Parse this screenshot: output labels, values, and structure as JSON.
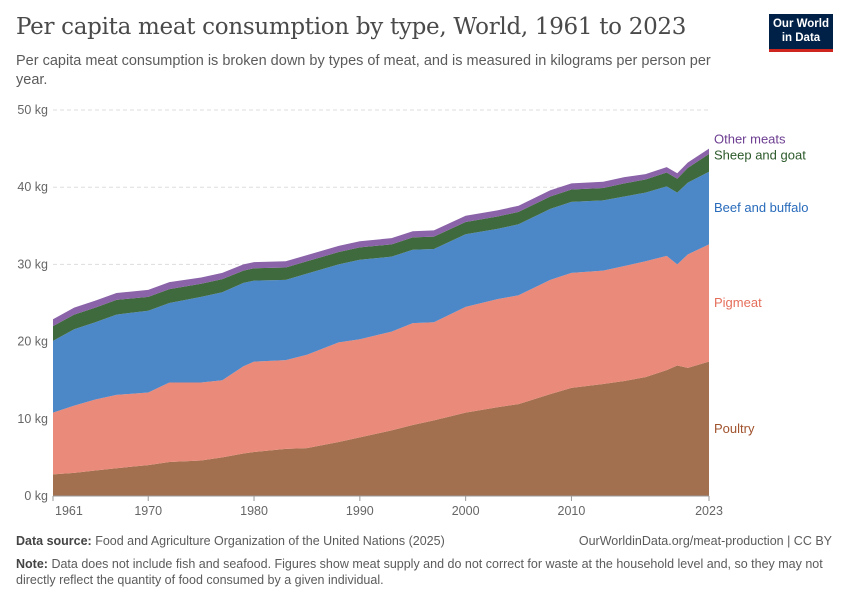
{
  "header": {
    "title": "Per capita meat consumption by type, World, 1961 to 2023",
    "subtitle": "Per capita meat consumption is broken down by types of meat, and is measured in kilograms per person per year.",
    "logo": "Our World in Data"
  },
  "footer": {
    "source_label": "Data source:",
    "source": "Food and Agriculture Organization of the United Nations (2025)",
    "url": "OurWorldinData.org/meat-production | CC BY",
    "note_label": "Note:",
    "note": "Data does not include fish and seafood. Figures show meat supply and do not correct for waste at the household level and, so they may not directly reflect the quantity of food consumed by a given individual."
  },
  "chart_data": {
    "type": "area",
    "stacked": true,
    "ylim": [
      0,
      50
    ],
    "xlim": [
      1961,
      2023
    ],
    "grid": "horizontal-dashed",
    "legend": "right-inline",
    "yticks": [
      0,
      10,
      20,
      30,
      40,
      50
    ],
    "ytick_labels": [
      "0 kg",
      "10 kg",
      "20 kg",
      "30 kg",
      "40 kg",
      "50 kg"
    ],
    "xticks": [
      1961,
      1970,
      1980,
      1990,
      2000,
      2010,
      2023
    ],
    "xtick_labels": [
      "1961",
      "1970",
      "1980",
      "1990",
      "2000",
      "2010",
      "2023"
    ],
    "x": [
      1961,
      1963,
      1965,
      1967,
      1970,
      1972,
      1975,
      1977,
      1979,
      1980,
      1983,
      1985,
      1988,
      1990,
      1993,
      1995,
      1997,
      2000,
      2003,
      2005,
      2008,
      2010,
      2013,
      2015,
      2017,
      2019,
      2020,
      2021,
      2023
    ],
    "series": [
      {
        "name": "Poultry",
        "color": "#a2704f",
        "label_color": "#a0522d",
        "values": [
          2.8,
          3.0,
          3.3,
          3.6,
          4.0,
          4.4,
          4.6,
          5.0,
          5.5,
          5.7,
          6.1,
          6.2,
          7.0,
          7.6,
          8.5,
          9.2,
          9.8,
          10.8,
          11.5,
          11.9,
          13.2,
          14.0,
          14.5,
          14.9,
          15.4,
          16.3,
          16.9,
          16.6,
          17.4
        ]
      },
      {
        "name": "Pigmeat",
        "color": "#ea8a7a",
        "label_color": "#e56e5a",
        "values": [
          8.0,
          8.7,
          9.2,
          9.5,
          9.4,
          10.3,
          10.1,
          10.0,
          11.3,
          11.7,
          11.5,
          12.1,
          12.9,
          12.7,
          12.8,
          13.2,
          12.7,
          13.7,
          14.0,
          14.1,
          14.8,
          14.9,
          14.7,
          14.9,
          15.0,
          14.8,
          13.1,
          14.7,
          15.2
        ]
      },
      {
        "name": "Beef and buffalo",
        "color": "#4c87c8",
        "label_color": "#286bbb",
        "values": [
          9.3,
          9.9,
          10.0,
          10.4,
          10.6,
          10.3,
          11.1,
          11.4,
          10.8,
          10.5,
          10.4,
          10.5,
          10.1,
          10.3,
          9.7,
          9.5,
          9.5,
          9.4,
          9.1,
          9.2,
          9.2,
          9.2,
          9.1,
          9.0,
          8.9,
          9.0,
          9.3,
          9.3,
          9.4
        ]
      },
      {
        "name": "Sheep and goat",
        "color": "#3f6a3d",
        "label_color": "#2c5a2b",
        "values": [
          1.9,
          1.9,
          1.9,
          1.9,
          1.8,
          1.8,
          1.7,
          1.7,
          1.6,
          1.6,
          1.6,
          1.6,
          1.6,
          1.6,
          1.6,
          1.6,
          1.6,
          1.6,
          1.6,
          1.6,
          1.6,
          1.6,
          1.6,
          1.7,
          1.7,
          1.8,
          1.8,
          1.9,
          2.3
        ]
      },
      {
        "name": "Other meats",
        "color": "#8a63a8",
        "label_color": "#6d3e91",
        "values": [
          0.9,
          0.9,
          0.9,
          0.9,
          0.9,
          0.9,
          0.8,
          0.8,
          0.8,
          0.8,
          0.8,
          0.8,
          0.8,
          0.8,
          0.8,
          0.8,
          0.8,
          0.8,
          0.8,
          0.8,
          0.8,
          0.8,
          0.8,
          0.8,
          0.7,
          0.7,
          0.7,
          0.7,
          0.7
        ]
      }
    ]
  }
}
